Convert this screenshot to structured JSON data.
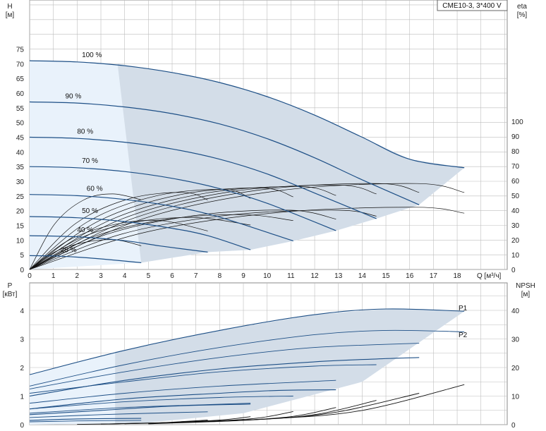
{
  "model_label": "CME10-3, 3*400 V",
  "colors": {
    "region_fill": "#d3dde8",
    "region_light": "#e9f2fb",
    "speed_curve": "#1d4f86",
    "eta_curve": "#111111",
    "grid": "#bdbdbd"
  },
  "chart_data": [
    {
      "type": "line",
      "name": "head",
      "ylabel_top": "H",
      "ylabel_unit": "[м]",
      "y2label_top": "eta",
      "y2label_unit": "[%]",
      "xlabel": "Q [м³/ч]",
      "xlim": [
        0,
        20
      ],
      "ylim": [
        0,
        80
      ],
      "y2lim": [
        0,
        140
      ],
      "x_ticks": [
        "0",
        "1",
        "2",
        "3",
        "4",
        "5",
        "6",
        "7",
        "8",
        "9",
        "10",
        "11",
        "12",
        "13",
        "14",
        "15",
        "16",
        "17",
        "18"
      ],
      "y_ticks": [
        "0",
        "5",
        "10",
        "15",
        "20",
        "25",
        "30",
        "35",
        "40",
        "45",
        "50",
        "55",
        "60",
        "65",
        "70",
        "75"
      ],
      "y2_ticks": [
        "0",
        "10",
        "20",
        "30",
        "40",
        "50",
        "60",
        "70",
        "80",
        "90",
        "100"
      ],
      "grid": true,
      "speed_curves": [
        {
          "label": "100 %",
          "points": [
            [
              0,
              71
            ],
            [
              2,
              70.6
            ],
            [
              4,
              69.3
            ],
            [
              6,
              67
            ],
            [
              8,
              63.6
            ],
            [
              10,
              58.8
            ],
            [
              12,
              52.5
            ],
            [
              14,
              45
            ],
            [
              16,
              37.5
            ],
            [
              18.3,
              34.6
            ]
          ]
        },
        {
          "label": "90 %",
          "points": [
            [
              0,
              57
            ],
            [
              2,
              56.6
            ],
            [
              4,
              55.3
            ],
            [
              6,
              53
            ],
            [
              8,
              49.5
            ],
            [
              10,
              44.5
            ],
            [
              12,
              38
            ],
            [
              14,
              30.5
            ],
            [
              16.4,
              22
            ]
          ]
        },
        {
          "label": "80 %",
          "points": [
            [
              0,
              45
            ],
            [
              2,
              44.6
            ],
            [
              4,
              43.3
            ],
            [
              6,
              41
            ],
            [
              8,
              37.5
            ],
            [
              10,
              32.5
            ],
            [
              12,
              26
            ],
            [
              14.6,
              17.3
            ]
          ]
        },
        {
          "label": "70 %",
          "points": [
            [
              0,
              35
            ],
            [
              2,
              34.6
            ],
            [
              4,
              33.3
            ],
            [
              6,
              31
            ],
            [
              8,
              27.5
            ],
            [
              10,
              22.5
            ],
            [
              12.9,
              13.2
            ]
          ]
        },
        {
          "label": "60 %",
          "points": [
            [
              0,
              25.5
            ],
            [
              2,
              25.1
            ],
            [
              4,
              23.8
            ],
            [
              6,
              21.5
            ],
            [
              8,
              17.8
            ],
            [
              11.1,
              9.7
            ]
          ]
        },
        {
          "label": "50 %",
          "points": [
            [
              0,
              18
            ],
            [
              2,
              17.6
            ],
            [
              4,
              16.3
            ],
            [
              6,
              14
            ],
            [
              7.5,
              11.5
            ],
            [
              9.3,
              6.7
            ]
          ]
        },
        {
          "label": "40 %",
          "points": [
            [
              0,
              11.5
            ],
            [
              2,
              11.1
            ],
            [
              4,
              9.8
            ],
            [
              5.5,
              8
            ],
            [
              7.5,
              5.9
            ]
          ]
        },
        {
          "label": "25 %",
          "points": [
            [
              0,
              4.7
            ],
            [
              1,
              4.6
            ],
            [
              2,
              4.2
            ],
            [
              3,
              3.6
            ],
            [
              4.7,
              2.3
            ]
          ]
        }
      ],
      "envelope": [
        [
          0,
          71
        ],
        [
          2,
          70.6
        ],
        [
          4,
          69.3
        ],
        [
          6,
          67
        ],
        [
          8,
          63.6
        ],
        [
          10,
          58.8
        ],
        [
          12,
          52.5
        ],
        [
          14,
          45
        ],
        [
          16,
          37.5
        ],
        [
          18.3,
          34.6
        ],
        [
          16.4,
          22
        ],
        [
          14.6,
          17.3
        ],
        [
          12.9,
          13.2
        ],
        [
          11.1,
          9.7
        ],
        [
          9.3,
          6.7
        ],
        [
          7.5,
          5.9
        ],
        [
          4.7,
          2.3
        ]
      ],
      "eta_curves": [
        {
          "peak_q": 16.3,
          "peak_eta": 58,
          "end_q": 18.3,
          "end_eta": 52
        },
        {
          "peak_q": 14.7,
          "peak_eta": 58,
          "end_q": 16.4,
          "end_eta": 52
        },
        {
          "peak_q": 13.0,
          "peak_eta": 57,
          "end_q": 14.6,
          "end_eta": 51
        },
        {
          "peak_q": 11.4,
          "peak_eta": 56,
          "end_q": 12.9,
          "end_eta": 50
        },
        {
          "peak_q": 9.8,
          "peak_eta": 55,
          "end_q": 11.1,
          "end_eta": 49
        },
        {
          "peak_q": 8.2,
          "peak_eta": 54,
          "end_q": 9.3,
          "end_eta": 48
        },
        {
          "peak_q": 6.5,
          "peak_eta": 52,
          "end_q": 7.5,
          "end_eta": 47
        },
        {
          "peak_q": 3.5,
          "peak_eta": 51,
          "end_q": 4.7,
          "end_eta": 47
        },
        {
          "peak_q": 16.3,
          "peak_eta": 42,
          "end_q": 18.3,
          "end_eta": 38
        },
        {
          "peak_q": 13.0,
          "peak_eta": 40,
          "end_q": 14.6,
          "end_eta": 36
        },
        {
          "peak_q": 11.0,
          "peak_eta": 40,
          "end_q": 12.9,
          "end_eta": 34
        },
        {
          "peak_q": 9.0,
          "peak_eta": 37,
          "end_q": 11.1,
          "end_eta": 33
        },
        {
          "peak_q": 7.0,
          "peak_eta": 35,
          "end_q": 9.3,
          "end_eta": 30
        },
        {
          "peak_q": 5.5,
          "peak_eta": 33,
          "end_q": 7.5,
          "end_eta": 26
        },
        {
          "peak_q": 3.6,
          "peak_eta": 20,
          "end_q": 4.7,
          "end_eta": 16
        }
      ]
    },
    {
      "type": "line",
      "name": "power",
      "ylabel_top": "P",
      "ylabel_unit": "[кВт]",
      "y2label_top": "NPSH",
      "y2label_unit": "[м]",
      "xlim": [
        0,
        20
      ],
      "ylim": [
        0,
        5
      ],
      "y2lim": [
        0,
        50
      ],
      "y_ticks": [
        "0",
        "1",
        "2",
        "3",
        "4"
      ],
      "y2_ticks": [
        "0",
        "10",
        "20",
        "30",
        "40"
      ],
      "grid": true,
      "series_labels": [
        "P1",
        "P2"
      ],
      "p1_curves": [
        [
          [
            0,
            1.75
          ],
          [
            4,
            2.6
          ],
          [
            8,
            3.3
          ],
          [
            12,
            3.85
          ],
          [
            15,
            4.05
          ],
          [
            18.3,
            3.97
          ]
        ],
        [
          [
            0,
            1.0
          ],
          [
            4,
            1.55
          ],
          [
            8,
            1.95
          ],
          [
            12,
            2.2
          ],
          [
            14.6,
            2.3
          ],
          [
            16.4,
            2.35
          ]
        ],
        [
          [
            0,
            0.55
          ],
          [
            4,
            0.9
          ],
          [
            8,
            1.1
          ],
          [
            10.5,
            1.2
          ],
          [
            12.9,
            1.22
          ]
        ],
        [
          [
            0,
            0.35
          ],
          [
            3,
            0.5
          ],
          [
            6,
            0.65
          ],
          [
            9.3,
            0.72
          ]
        ],
        [
          [
            0,
            0.15
          ],
          [
            2,
            0.2
          ],
          [
            4.7,
            0.22
          ]
        ]
      ],
      "p2_curves": [
        [
          [
            0,
            1.35
          ],
          [
            4,
            2.1
          ],
          [
            8,
            2.7
          ],
          [
            12,
            3.15
          ],
          [
            15,
            3.3
          ],
          [
            18.3,
            3.25
          ]
        ],
        [
          [
            0,
            1.25
          ],
          [
            4,
            1.85
          ],
          [
            8,
            2.35
          ],
          [
            12,
            2.7
          ],
          [
            16.4,
            2.85
          ]
        ],
        [
          [
            0,
            1.1
          ],
          [
            4,
            1.5
          ],
          [
            8,
            1.85
          ],
          [
            12,
            2.05
          ],
          [
            14.6,
            2.1
          ]
        ],
        [
          [
            0,
            0.75
          ],
          [
            4,
            1.1
          ],
          [
            8,
            1.35
          ],
          [
            12.9,
            1.55
          ]
        ],
        [
          [
            0,
            0.55
          ],
          [
            4,
            0.8
          ],
          [
            8,
            0.95
          ],
          [
            11.1,
            1.0
          ]
        ],
        [
          [
            0,
            0.4
          ],
          [
            4,
            0.6
          ],
          [
            7.5,
            0.7
          ],
          [
            9.3,
            0.75
          ]
        ],
        [
          [
            0,
            0.25
          ],
          [
            3,
            0.35
          ],
          [
            6,
            0.42
          ],
          [
            7.5,
            0.45
          ]
        ],
        [
          [
            0,
            0.1
          ],
          [
            2,
            0.13
          ],
          [
            4.7,
            0.15
          ]
        ]
      ],
      "npsh_curves": [
        [
          [
            5,
            0.5
          ],
          [
            10,
            2
          ],
          [
            14,
            5
          ],
          [
            18.3,
            14
          ]
        ],
        [
          [
            5,
            0.5
          ],
          [
            10,
            2
          ],
          [
            13,
            4.5
          ],
          [
            16.4,
            11
          ]
        ],
        [
          [
            5,
            0.3
          ],
          [
            9,
            1.5
          ],
          [
            12,
            3.5
          ],
          [
            14.6,
            8.5
          ]
        ],
        [
          [
            4,
            0.3
          ],
          [
            8,
            1.2
          ],
          [
            11,
            2.8
          ],
          [
            12.9,
            6
          ]
        ],
        [
          [
            3,
            0.2
          ],
          [
            7,
            1
          ],
          [
            9.5,
            2.2
          ],
          [
            11.1,
            4.6
          ]
        ],
        [
          [
            3,
            0.2
          ],
          [
            6,
            0.8
          ],
          [
            8,
            1.6
          ],
          [
            9.3,
            2.8
          ]
        ],
        [
          [
            2,
            0.1
          ],
          [
            5,
            0.5
          ],
          [
            6.5,
            1.1
          ],
          [
            7.5,
            1.6
          ]
        ]
      ]
    }
  ]
}
